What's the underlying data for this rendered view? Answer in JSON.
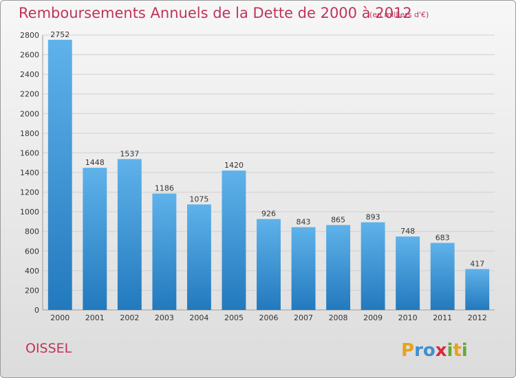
{
  "header": {
    "title": "Remboursements Annuels de la Dette de 2000 à 2012",
    "subtitle": "(en milliers d'€)"
  },
  "footer": {
    "commune": "OISSEL",
    "brand": "Proxiti"
  },
  "colors": {
    "title": "#c0335a",
    "bar_light": "#5fb2ea",
    "bar_dark": "#2279bd",
    "grid": "#d0d0d0"
  },
  "chart_data": {
    "type": "bar",
    "title": "Remboursements Annuels de la Dette de 2000 à 2012",
    "subtitle": "(en milliers d'€)",
    "xlabel": "",
    "ylabel": "",
    "categories": [
      "2000",
      "2001",
      "2002",
      "2003",
      "2004",
      "2005",
      "2006",
      "2007",
      "2008",
      "2009",
      "2010",
      "2011",
      "2012"
    ],
    "values": [
      2752,
      1448,
      1537,
      1186,
      1075,
      1420,
      926,
      843,
      865,
      893,
      748,
      683,
      417
    ],
    "ylim": [
      0,
      2800
    ],
    "yticks": [
      0,
      200,
      400,
      600,
      800,
      1000,
      1200,
      1400,
      1600,
      1800,
      2000,
      2200,
      2400,
      2600,
      2800
    ],
    "grid": true,
    "data_labels": true
  }
}
